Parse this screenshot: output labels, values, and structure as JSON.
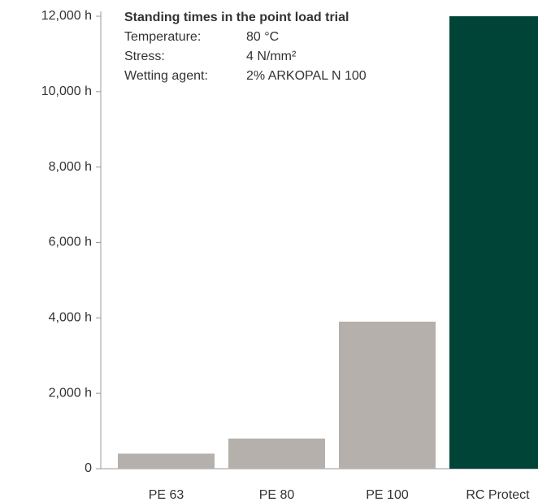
{
  "chart_data": {
    "type": "bar",
    "annotation": {
      "title": "Standing times in the point load trial",
      "lines": [
        {
          "label": "Temperature:",
          "value": "80 °C"
        },
        {
          "label": "Stress:",
          "value": "4 N/mm²"
        },
        {
          "label": "Wetting agent:",
          "value": "2% ARKOPAL N 100"
        }
      ]
    },
    "categories": [
      "PE 63",
      "PE 80",
      "PE 100",
      "RC Protect"
    ],
    "values": [
      400,
      800,
      3900,
      12000
    ],
    "colors": [
      "#b5b0ab",
      "#b5b0ab",
      "#b5b0ab",
      "#004438"
    ],
    "ylim": [
      0,
      12000
    ],
    "yticks": [
      0,
      {
        "value": 2000,
        "label": "2,000 h"
      },
      {
        "value": 4000,
        "label": "4,000 h"
      },
      {
        "value": 6000,
        "label": "6,000 h"
      },
      {
        "value": 8000,
        "label": "8,000 h"
      },
      {
        "value": 10000,
        "label": "10,000 h"
      },
      {
        "value": 12000,
        "label": "12,000 h"
      }
    ],
    "grid": false
  }
}
